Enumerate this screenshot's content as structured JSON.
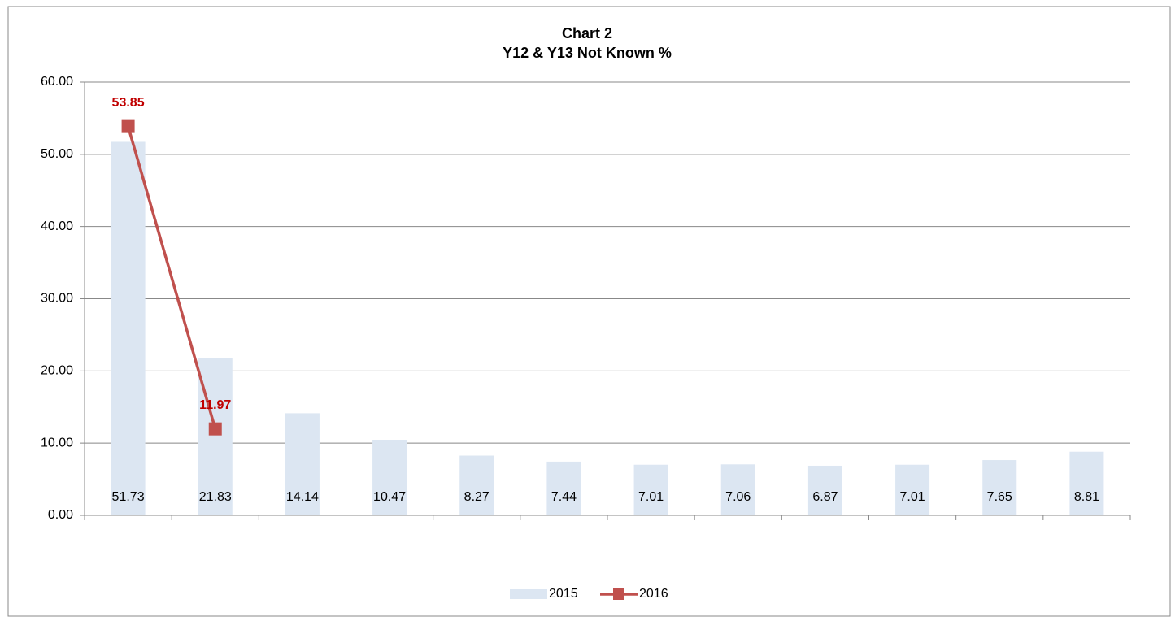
{
  "chart_data": {
    "type": "bar-line",
    "title": "Chart 2",
    "subtitle": "Y12 & Y13 Not Known %",
    "categories": [
      null,
      null,
      null,
      null,
      null,
      null,
      null,
      null,
      null,
      null,
      null,
      null
    ],
    "series": [
      {
        "name": "2015",
        "type": "bar",
        "color": "#dce6f2",
        "values": [
          51.73,
          21.83,
          14.14,
          10.47,
          8.27,
          7.44,
          7.01,
          7.06,
          6.87,
          7.01,
          7.65,
          8.81
        ]
      },
      {
        "name": "2016",
        "type": "line",
        "color": "#c0504d",
        "values": [
          53.85,
          11.97,
          null,
          null,
          null,
          null,
          null,
          null,
          null,
          null,
          null,
          null
        ]
      }
    ],
    "ylim": [
      0,
      60
    ],
    "yticks": [
      {
        "value": 0,
        "label": "0.00"
      },
      {
        "value": 10,
        "label": "10.00"
      },
      {
        "value": 20,
        "label": "20.00"
      },
      {
        "value": 30,
        "label": "30.00"
      },
      {
        "value": 40,
        "label": "40.00"
      },
      {
        "value": 50,
        "label": "50.00"
      },
      {
        "value": 60,
        "label": "60.00"
      }
    ],
    "grid": true,
    "legend": "bottom"
  }
}
